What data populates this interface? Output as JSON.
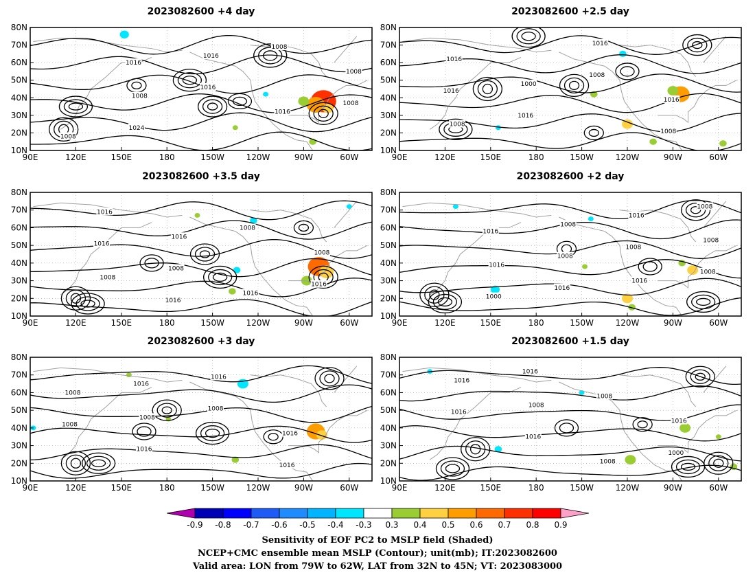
{
  "chart_data": {
    "type": "heatmap",
    "colorbar": {
      "levels": [
        "-0.9",
        "-0.8",
        "-0.7",
        "-0.6",
        "-0.5",
        "-0.4",
        "-0.3",
        "0.3",
        "0.4",
        "0.5",
        "0.6",
        "0.7",
        "0.8",
        "0.9"
      ],
      "colors": [
        "#b000b0",
        "#0000b4",
        "#0000ff",
        "#1e5af5",
        "#1e8cff",
        "#00b4ff",
        "#00e6ff",
        "#ffffff",
        "#9acd32",
        "#ffd040",
        "#ff9c00",
        "#ff6a00",
        "#ff3000",
        "#ff0000",
        "#ffa0c8"
      ]
    },
    "contour_color": "#000000",
    "coast_color": "#a0a0a0",
    "lon_ticks": [
      "90E",
      "120E",
      "150E",
      "180",
      "150W",
      "120W",
      "90W",
      "60W"
    ],
    "lat_ticks": [
      "80N",
      "70N",
      "60N",
      "50N",
      "40N",
      "30N",
      "20N",
      "10N"
    ],
    "lon_range": [
      90,
      315
    ],
    "lat_range": [
      10,
      80
    ],
    "panels": [
      {
        "title": "2023082600  +4 day",
        "labels": [
          "1008",
          "1008",
          "1016",
          "1016",
          "1008",
          "1024",
          "1016",
          "1008",
          "1008",
          "1016"
        ],
        "lows": [
          [
            210,
            35
          ],
          [
            195,
            50
          ],
          [
            112,
            22
          ],
          [
            120,
            35
          ],
          [
            283,
            31
          ],
          [
            248,
            64
          ]
        ],
        "highs": [
          [
            160,
            47
          ],
          [
            228,
            38
          ]
        ],
        "blobs": [
          {
            "lon": 283,
            "lat": 38,
            "r": 7,
            "v": 0.8
          },
          {
            "lon": 278,
            "lat": 36,
            "r": 5,
            "v": 0.6
          },
          {
            "lon": 286,
            "lat": 34,
            "r": 3,
            "v": 0.5
          },
          {
            "lon": 270,
            "lat": 38,
            "r": 3,
            "v": 0.4
          },
          {
            "lon": 276,
            "lat": 15,
            "r": 2,
            "v": 0.4
          },
          {
            "lon": 225,
            "lat": 23,
            "r": 1.5,
            "v": 0.4
          },
          {
            "lon": 152,
            "lat": 76,
            "r": 2.5,
            "v": -0.3
          },
          {
            "lon": 245,
            "lat": 42,
            "r": 1.5,
            "v": -0.3
          }
        ]
      },
      {
        "title": "2023082600  +2.5 day",
        "labels": [
          "1008",
          "1000",
          "1016",
          "1016",
          "1016",
          "1016",
          "1008",
          "1008",
          "1016"
        ],
        "lows": [
          [
            286,
            70
          ],
          [
            175,
            75
          ],
          [
            148,
            45
          ],
          [
            127,
            22
          ],
          [
            205,
            47
          ]
        ],
        "highs": [
          [
            240,
            55
          ],
          [
            218,
            20
          ]
        ],
        "blobs": [
          {
            "lon": 275,
            "lat": 42,
            "r": 5,
            "v": 0.6
          },
          {
            "lon": 270,
            "lat": 44,
            "r": 3,
            "v": 0.4
          },
          {
            "lon": 240,
            "lat": 25,
            "r": 3,
            "v": 0.5
          },
          {
            "lon": 218,
            "lat": 42,
            "r": 2,
            "v": 0.4
          },
          {
            "lon": 303,
            "lat": 14,
            "r": 2,
            "v": 0.4
          },
          {
            "lon": 257,
            "lat": 15,
            "r": 2,
            "v": 0.4
          },
          {
            "lon": 237,
            "lat": 65,
            "r": 2,
            "v": -0.3
          },
          {
            "lon": 155,
            "lat": 23,
            "r": 1.5,
            "v": -0.3
          }
        ]
      },
      {
        "title": "2023082600  +3.5 day",
        "labels": [
          "1008",
          "1016",
          "1016",
          "1008",
          "1016",
          "1008",
          "1008",
          "1016",
          "1016",
          "1016"
        ],
        "lows": [
          [
            205,
            45
          ],
          [
            215,
            32
          ],
          [
            120,
            20
          ],
          [
            128,
            17
          ],
          [
            283,
            32
          ]
        ],
        "highs": [
          [
            170,
            40
          ],
          [
            270,
            60
          ]
        ],
        "blobs": [
          {
            "lon": 280,
            "lat": 38,
            "r": 6,
            "v": 0.7
          },
          {
            "lon": 285,
            "lat": 35,
            "r": 4,
            "v": 0.5
          },
          {
            "lon": 272,
            "lat": 30,
            "r": 3,
            "v": 0.4
          },
          {
            "lon": 223,
            "lat": 24,
            "r": 2,
            "v": 0.4
          },
          {
            "lon": 226,
            "lat": 36,
            "r": 2,
            "v": -0.3
          },
          {
            "lon": 237,
            "lat": 64,
            "r": 2,
            "v": -0.3
          },
          {
            "lon": 200,
            "lat": 67,
            "r": 1.5,
            "v": 0.4
          },
          {
            "lon": 300,
            "lat": 72,
            "r": 1.5,
            "v": -0.3
          }
        ]
      },
      {
        "title": "2023082600  +2 day",
        "labels": [
          "1016",
          "1008",
          "1016",
          "1008",
          "1000",
          "1008",
          "1016",
          "1008",
          "1016",
          "1016",
          "1008",
          "1008"
        ],
        "lows": [
          [
            285,
            70
          ],
          [
            120,
            18
          ],
          [
            113,
            22
          ],
          [
            290,
            18
          ]
        ],
        "highs": [
          [
            200,
            48
          ],
          [
            255,
            38
          ]
        ],
        "blobs": [
          {
            "lon": 240,
            "lat": 20,
            "r": 3,
            "v": 0.5
          },
          {
            "lon": 243,
            "lat": 15,
            "r": 2,
            "v": 0.4
          },
          {
            "lon": 283,
            "lat": 36,
            "r": 3,
            "v": 0.5
          },
          {
            "lon": 276,
            "lat": 40,
            "r": 2,
            "v": 0.4
          },
          {
            "lon": 212,
            "lat": 38,
            "r": 1.5,
            "v": 0.4
          },
          {
            "lon": 153,
            "lat": 25,
            "r": 2.5,
            "v": -0.3
          },
          {
            "lon": 216,
            "lat": 65,
            "r": 1.5,
            "v": -0.3
          },
          {
            "lon": 127,
            "lat": 72,
            "r": 1.5,
            "v": -0.3
          }
        ]
      },
      {
        "title": "2023082600  +3 day",
        "labels": [
          "1008",
          "1016",
          "1016",
          "1008",
          "1016",
          "1008",
          "1016",
          "1008",
          "1016"
        ],
        "lows": [
          [
            180,
            50
          ],
          [
            210,
            37
          ],
          [
            120,
            20
          ],
          [
            135,
            20
          ],
          [
            287,
            68
          ]
        ],
        "highs": [
          [
            165,
            38
          ],
          [
            250,
            35
          ]
        ],
        "blobs": [
          {
            "lon": 278,
            "lat": 38,
            "r": 5,
            "v": 0.6
          },
          {
            "lon": 282,
            "lat": 36,
            "r": 3,
            "v": 0.5
          },
          {
            "lon": 225,
            "lat": 22,
            "r": 2,
            "v": 0.4
          },
          {
            "lon": 181,
            "lat": 45,
            "r": 1.5,
            "v": 0.4
          },
          {
            "lon": 230,
            "lat": 65,
            "r": 3,
            "v": -0.3
          },
          {
            "lon": 92,
            "lat": 40,
            "r": 1.5,
            "v": -0.3
          },
          {
            "lon": 155,
            "lat": 70,
            "r": 1.5,
            "v": 0.4
          }
        ]
      },
      {
        "title": "2023082600  +1.5 day",
        "labels": [
          "1008",
          "1008",
          "1016",
          "1016",
          "1016",
          "1008",
          "1000",
          "1016",
          "1016"
        ],
        "lows": [
          [
            288,
            69
          ],
          [
            125,
            17
          ],
          [
            140,
            28
          ],
          [
            280,
            18
          ],
          [
            300,
            20
          ]
        ],
        "highs": [
          [
            200,
            40
          ],
          [
            250,
            42
          ]
        ],
        "blobs": [
          {
            "lon": 242,
            "lat": 22,
            "r": 3,
            "v": 0.4
          },
          {
            "lon": 278,
            "lat": 40,
            "r": 3,
            "v": 0.4
          },
          {
            "lon": 310,
            "lat": 18,
            "r": 2,
            "v": 0.4
          },
          {
            "lon": 155,
            "lat": 28,
            "r": 2,
            "v": -0.3
          },
          {
            "lon": 210,
            "lat": 60,
            "r": 1.5,
            "v": -0.3
          },
          {
            "lon": 110,
            "lat": 72,
            "r": 1.5,
            "v": -0.3
          },
          {
            "lon": 300,
            "lat": 35,
            "r": 1.5,
            "v": 0.4
          }
        ]
      }
    ]
  },
  "caption": {
    "line1": "Sensitivity of EOF PC2 to MSLP field (Shaded)",
    "line2": "NCEP+CMC ensemble mean MSLP (Contour); unit(mb); IT:2023082600",
    "line3": "Valid area: LON from 79W to 62W, LAT from 32N to 45N; VT: 2023083000"
  }
}
